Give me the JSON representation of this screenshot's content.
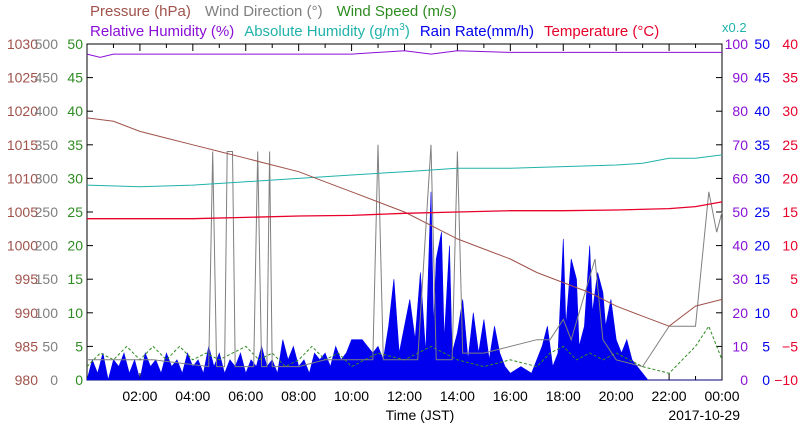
{
  "chart_data": {
    "type": "line",
    "xlabel": "Time (JST)",
    "date_label": "2017-10-29",
    "x_ticks": [
      "02:00",
      "04:00",
      "06:00",
      "08:00",
      "10:00",
      "12:00",
      "14:00",
      "16:00",
      "18:00",
      "20:00",
      "22:00",
      "00:00"
    ],
    "x_range_hours": [
      0,
      24
    ],
    "legend_row1": [
      {
        "name": "Pressure (hPa)",
        "color": "#a0524b"
      },
      {
        "name": "Wind Direction (°)",
        "color": "#7f7f7f"
      },
      {
        "name": "Wind Speed (m/s)",
        "color": "#2e8b22"
      }
    ],
    "legend_row2": [
      {
        "name": "Relative Humidity (%)",
        "color": "#8a0fd6"
      },
      {
        "name": "Absolute Humidity (g/m",
        "sup": "3",
        "tail": ")",
        "color": "#20b2aa"
      },
      {
        "name": "Rain Rate(mm/h)",
        "color": "#0000ee"
      },
      {
        "name": "Temperature (°C)",
        "color": "#e8002a"
      }
    ],
    "abs_humidity_scale_note": "x0.2",
    "axes": {
      "pressure": {
        "color": "#a0524b",
        "ticks": [
          "1030",
          "1025",
          "1020",
          "1015",
          "1010",
          "1005",
          "1000",
          "995",
          "990",
          "985",
          "980"
        ],
        "range": [
          980,
          1030
        ]
      },
      "wind_direction": {
        "color": "#7f7f7f",
        "ticks": [
          "500",
          "450",
          "400",
          "350",
          "300",
          "250",
          "200",
          "150",
          "100",
          "50",
          "0"
        ],
        "range": [
          0,
          500
        ]
      },
      "wind_speed": {
        "color": "#2e8b22",
        "ticks": [
          "50",
          "45",
          "40",
          "35",
          "30",
          "25",
          "20",
          "15",
          "10",
          "5",
          "0"
        ],
        "range": [
          0,
          50
        ]
      },
      "humidity": {
        "color": "#8a0fd6",
        "ticks": [
          "100",
          "90",
          "80",
          "70",
          "60",
          "50",
          "40",
          "30",
          "20",
          "10",
          "0"
        ],
        "range": [
          0,
          100
        ]
      },
      "rain_rate": {
        "color": "#0000ee",
        "ticks": [
          "50",
          "45",
          "40",
          "35",
          "30",
          "25",
          "20",
          "15",
          "10",
          "5",
          "0"
        ],
        "range": [
          0,
          50
        ]
      },
      "temperature": {
        "color": "#e8002a",
        "ticks": [
          "40",
          "35",
          "30",
          "25",
          "20",
          "15",
          "10",
          "5",
          "0",
          "−5",
          "−10"
        ],
        "range": [
          -10,
          40
        ]
      }
    },
    "series": [
      {
        "name": "Pressure",
        "axis": "pressure",
        "points": [
          [
            0,
            1019
          ],
          [
            1,
            1018.5
          ],
          [
            2,
            1017
          ],
          [
            3,
            1016
          ],
          [
            4,
            1015
          ],
          [
            5,
            1014
          ],
          [
            6,
            1013
          ],
          [
            7,
            1012
          ],
          [
            8,
            1011
          ],
          [
            9,
            1009.5
          ],
          [
            10,
            1008
          ],
          [
            11,
            1006.5
          ],
          [
            12,
            1005
          ],
          [
            13,
            1003
          ],
          [
            14,
            1001
          ],
          [
            15,
            999.5
          ],
          [
            16,
            998
          ],
          [
            17,
            996
          ],
          [
            18,
            994.5
          ],
          [
            19,
            993
          ],
          [
            20,
            991
          ],
          [
            21,
            989.5
          ],
          [
            22,
            988
          ],
          [
            23,
            991
          ],
          [
            24,
            992
          ]
        ]
      },
      {
        "name": "Temperature",
        "axis": "temperature",
        "points": [
          [
            0,
            14
          ],
          [
            2,
            14
          ],
          [
            4,
            14
          ],
          [
            6,
            14.2
          ],
          [
            8,
            14.4
          ],
          [
            10,
            14.5
          ],
          [
            12,
            14.8
          ],
          [
            14,
            15.0
          ],
          [
            16,
            15.2
          ],
          [
            18,
            15.2
          ],
          [
            20,
            15.3
          ],
          [
            22,
            15.5
          ],
          [
            23,
            15.8
          ],
          [
            24,
            16.5
          ]
        ]
      },
      {
        "name": "Absolute Humidity",
        "axis": "humidity",
        "points": [
          [
            0,
            58
          ],
          [
            2,
            57.5
          ],
          [
            4,
            58
          ],
          [
            6,
            59
          ],
          [
            8,
            60
          ],
          [
            10,
            61
          ],
          [
            12,
            62
          ],
          [
            14,
            63
          ],
          [
            16,
            63
          ],
          [
            18,
            63.5
          ],
          [
            20,
            64
          ],
          [
            21,
            64.5
          ],
          [
            22,
            66
          ],
          [
            23,
            66
          ],
          [
            24,
            67
          ]
        ]
      },
      {
        "name": "Relative Humidity",
        "axis": "humidity",
        "points": [
          [
            0,
            97
          ],
          [
            0.5,
            96
          ],
          [
            1,
            97
          ],
          [
            10,
            97
          ],
          [
            11,
            97.5
          ],
          [
            12,
            98
          ],
          [
            13,
            97
          ],
          [
            14,
            98
          ],
          [
            16,
            97.5
          ],
          [
            20,
            97.5
          ],
          [
            24,
            97.5
          ]
        ]
      },
      {
        "name": "Wind Direction",
        "axis": "wind_direction",
        "points": [
          [
            0,
            30
          ],
          [
            2.5,
            30
          ],
          [
            4.6,
            20
          ],
          [
            4.75,
            340
          ],
          [
            4.9,
            20
          ],
          [
            5.2,
            20
          ],
          [
            5.3,
            340
          ],
          [
            5.5,
            340
          ],
          [
            5.6,
            20
          ],
          [
            6.3,
            20
          ],
          [
            6.45,
            340
          ],
          [
            6.6,
            20
          ],
          [
            6.8,
            20
          ],
          [
            6.9,
            340
          ],
          [
            7.0,
            20
          ],
          [
            8,
            20
          ],
          [
            9,
            30
          ],
          [
            10.8,
            30
          ],
          [
            11.0,
            350
          ],
          [
            11.2,
            30
          ],
          [
            12.5,
            30
          ],
          [
            13.0,
            350
          ],
          [
            13.2,
            30
          ],
          [
            13.8,
            30
          ],
          [
            14.0,
            340
          ],
          [
            14.2,
            40
          ],
          [
            15,
            40
          ],
          [
            17,
            60
          ],
          [
            17.5,
            60
          ],
          [
            18,
            90
          ],
          [
            18.3,
            60
          ],
          [
            19.2,
            180
          ],
          [
            19.5,
            60
          ],
          [
            20,
            30
          ],
          [
            21,
            20
          ],
          [
            22,
            80
          ],
          [
            23,
            80
          ],
          [
            23.5,
            280
          ],
          [
            23.8,
            220
          ],
          [
            24,
            250
          ]
        ]
      },
      {
        "name": "Wind Speed",
        "axis": "wind_speed",
        "points": [
          [
            0,
            2
          ],
          [
            0.5,
            4
          ],
          [
            1,
            3
          ],
          [
            1.5,
            5
          ],
          [
            2,
            3
          ],
          [
            2.5,
            5
          ],
          [
            3,
            3
          ],
          [
            3.5,
            5
          ],
          [
            4,
            3
          ],
          [
            4.5,
            4
          ],
          [
            5,
            3
          ],
          [
            5.5,
            4
          ],
          [
            6,
            5
          ],
          [
            6.5,
            3
          ],
          [
            7,
            4
          ],
          [
            7.5,
            2
          ],
          [
            8,
            3
          ],
          [
            8.5,
            5
          ],
          [
            9,
            3
          ],
          [
            9.5,
            4
          ],
          [
            10,
            2
          ],
          [
            10.5,
            3
          ],
          [
            11,
            4
          ],
          [
            12,
            3
          ],
          [
            13,
            5
          ],
          [
            14,
            3
          ],
          [
            15,
            2
          ],
          [
            16,
            3
          ],
          [
            17,
            2
          ],
          [
            17.5,
            4
          ],
          [
            18,
            5
          ],
          [
            18.5,
            3
          ],
          [
            19,
            4
          ],
          [
            19.5,
            3
          ],
          [
            20,
            4
          ],
          [
            21,
            2
          ],
          [
            22,
            1
          ],
          [
            22.5,
            3
          ],
          [
            23,
            5
          ],
          [
            23.5,
            8
          ],
          [
            24,
            3
          ]
        ]
      },
      {
        "name": "Rain Rate",
        "axis": "rain_rate",
        "fill": true,
        "points": [
          [
            0,
            0
          ],
          [
            0.2,
            3
          ],
          [
            0.4,
            1
          ],
          [
            0.6,
            4
          ],
          [
            0.8,
            0
          ],
          [
            1.0,
            3
          ],
          [
            1.2,
            2
          ],
          [
            1.4,
            4
          ],
          [
            1.6,
            1
          ],
          [
            1.8,
            3
          ],
          [
            2.0,
            0
          ],
          [
            2.2,
            4
          ],
          [
            2.4,
            2
          ],
          [
            2.6,
            3
          ],
          [
            2.8,
            1
          ],
          [
            3.0,
            4
          ],
          [
            3.2,
            2
          ],
          [
            3.4,
            3
          ],
          [
            3.6,
            1
          ],
          [
            3.8,
            4
          ],
          [
            4.0,
            2
          ],
          [
            4.2,
            3
          ],
          [
            4.4,
            1
          ],
          [
            4.6,
            5
          ],
          [
            4.8,
            2
          ],
          [
            5.0,
            4
          ],
          [
            5.2,
            1
          ],
          [
            5.4,
            3
          ],
          [
            5.6,
            2
          ],
          [
            5.8,
            4
          ],
          [
            6.0,
            1
          ],
          [
            6.2,
            3
          ],
          [
            6.4,
            2
          ],
          [
            6.6,
            5
          ],
          [
            6.8,
            2
          ],
          [
            7.0,
            3
          ],
          [
            7.2,
            1
          ],
          [
            7.4,
            6
          ],
          [
            7.6,
            3
          ],
          [
            7.8,
            5
          ],
          [
            8.0,
            2
          ],
          [
            8.2,
            3
          ],
          [
            8.4,
            1
          ],
          [
            8.6,
            4
          ],
          [
            8.8,
            3
          ],
          [
            9.0,
            4
          ],
          [
            9.2,
            2
          ],
          [
            9.4,
            5
          ],
          [
            9.6,
            3
          ],
          [
            9.8,
            4
          ],
          [
            10.0,
            6
          ],
          [
            10.2,
            6
          ],
          [
            10.4,
            6
          ],
          [
            10.6,
            5
          ],
          [
            10.8,
            4
          ],
          [
            11.0,
            5
          ],
          [
            11.2,
            3
          ],
          [
            11.4,
            8
          ],
          [
            11.6,
            15
          ],
          [
            11.8,
            4
          ],
          [
            12.0,
            8
          ],
          [
            12.2,
            12
          ],
          [
            12.4,
            6
          ],
          [
            12.6,
            16
          ],
          [
            12.8,
            4
          ],
          [
            13.0,
            28
          ],
          [
            13.1,
            8
          ],
          [
            13.2,
            18
          ],
          [
            13.4,
            22
          ],
          [
            13.5,
            6
          ],
          [
            13.7,
            20
          ],
          [
            13.8,
            4
          ],
          [
            14.0,
            7
          ],
          [
            14.2,
            12
          ],
          [
            14.4,
            3
          ],
          [
            14.6,
            10
          ],
          [
            14.8,
            4
          ],
          [
            15.0,
            9
          ],
          [
            15.2,
            3
          ],
          [
            15.4,
            8
          ],
          [
            15.6,
            4
          ],
          [
            15.8,
            2
          ],
          [
            16.0,
            1
          ],
          [
            16.4,
            2
          ],
          [
            16.8,
            1
          ],
          [
            17.0,
            3
          ],
          [
            17.2,
            5
          ],
          [
            17.4,
            8
          ],
          [
            17.6,
            2
          ],
          [
            17.8,
            4
          ],
          [
            18.0,
            21
          ],
          [
            18.1,
            8
          ],
          [
            18.3,
            18
          ],
          [
            18.5,
            15
          ],
          [
            18.6,
            5
          ],
          [
            18.8,
            8
          ],
          [
            19.0,
            20
          ],
          [
            19.1,
            10
          ],
          [
            19.3,
            16
          ],
          [
            19.5,
            13
          ],
          [
            19.6,
            8
          ],
          [
            19.8,
            12
          ],
          [
            20.0,
            6
          ],
          [
            20.2,
            4
          ],
          [
            20.4,
            6
          ],
          [
            20.6,
            3
          ],
          [
            20.8,
            2
          ],
          [
            21.0,
            1
          ],
          [
            21.2,
            0
          ],
          [
            24,
            0
          ]
        ]
      }
    ]
  }
}
